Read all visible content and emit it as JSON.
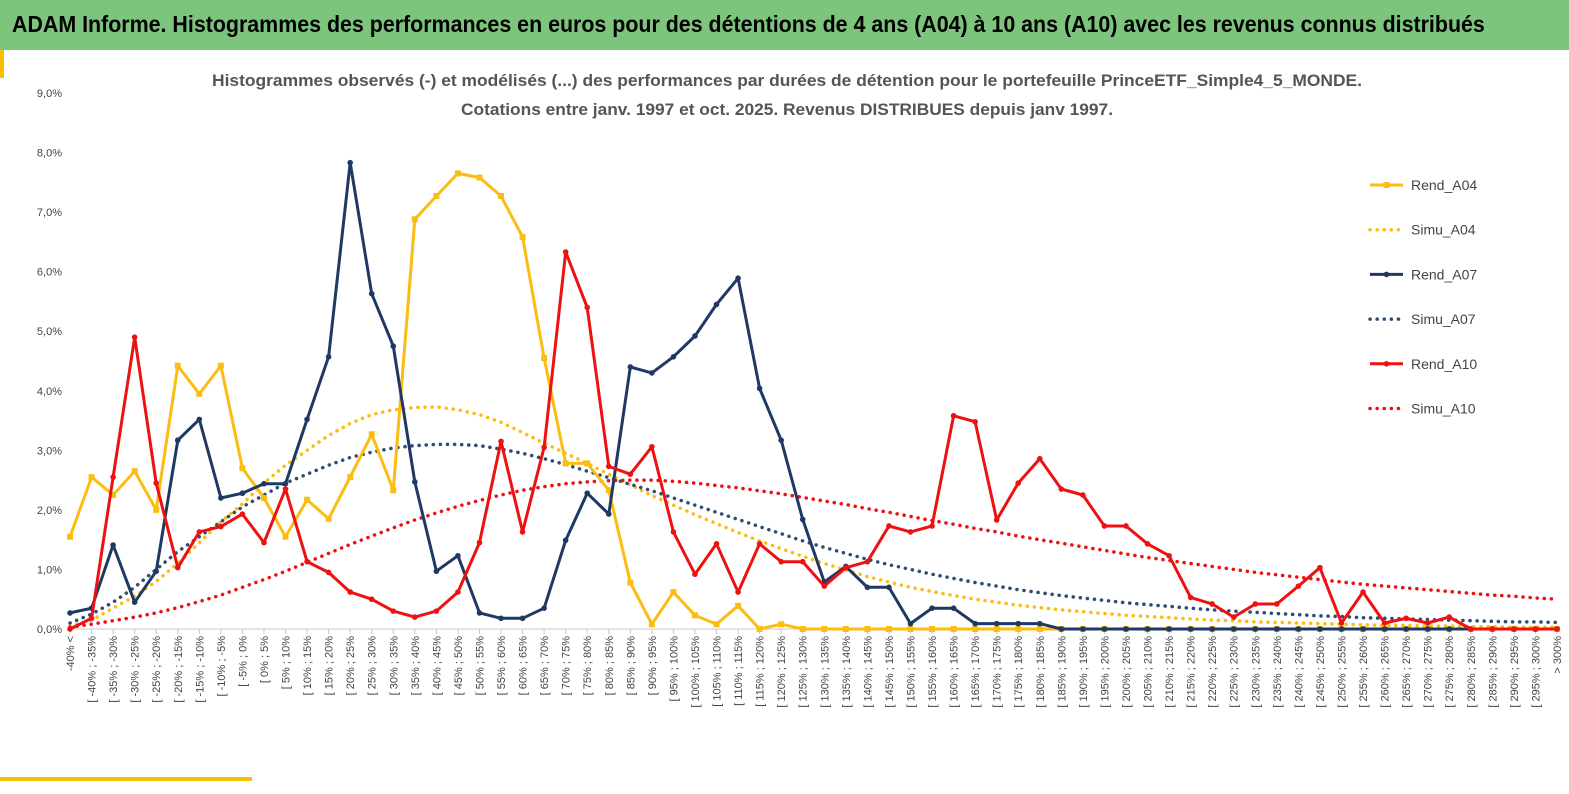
{
  "banner": {
    "title": "ADAM Informe. Histogrammes des performances en euros pour des détentions de 4 ans (A04) à 10 ans (A10) avec les revenus connus distribués"
  },
  "colors": {
    "banner": "#7dc57d",
    "accent": "#f5c100",
    "A04": "#fbbd12",
    "A07": "#1f3864",
    "A10": "#ee1111",
    "simA07": "#2f4d70"
  },
  "chart_data": {
    "type": "line",
    "title": "Histogrammes observés (-) et modélisés (...) des performances par durées de détention pour le portefeuille PrinceETF_Simple4_5_MONDE.",
    "subtitle": "Cotations entre janv. 1997 et oct. 2025. Revenus DISTRIBUES depuis janv 1997.",
    "ylim": [
      0,
      9
    ],
    "yticks": [
      "0,0%",
      "1,0%",
      "2,0%",
      "3,0%",
      "4,0%",
      "5,0%",
      "6,0%",
      "7,0%",
      "8,0%",
      "9,0%"
    ],
    "grid": false,
    "legend_position": "right",
    "categories": [
      "-40% <",
      "[ -40% ; -35%",
      "[ -35% ; -30%",
      "[ -30% ; -25%",
      "[ -25% ; -20%",
      "[ -20% ; -15%",
      "[ -15% ; -10%",
      "[ -10% ; -5%",
      "[ -5% ; 0%",
      "[ 0% ; 5%",
      "[ 5% ; 10%",
      "[ 10% ; 15%",
      "[ 15% ; 20%",
      "[ 20% ; 25%",
      "[ 25% ; 30%",
      "[ 30% ; 35%",
      "[ 35% ; 40%",
      "[ 40% ; 45%",
      "[ 45% ; 50%",
      "[ 50% ; 55%",
      "[ 55% ; 60%",
      "[ 60% ; 65%",
      "[ 65% ; 70%",
      "[ 70% ; 75%",
      "[ 75% ; 80%",
      "[ 80% ; 85%",
      "[ 85% ; 90%",
      "[ 90% ; 95%",
      "[ 95% ; 100%",
      "[ 100% ; 105%",
      "[ 105% ; 110%",
      "[ 110% ; 115%",
      "[ 115% ; 120%",
      "[ 120% ; 125%",
      "[ 125% ; 130%",
      "[ 130% ; 135%",
      "[ 135% ; 140%",
      "[ 140% ; 145%",
      "[ 145% ; 150%",
      "[ 150% ; 155%",
      "[ 155% ; 160%",
      "[ 160% ; 165%",
      "[ 165% ; 170%",
      "[ 170% ; 175%",
      "[ 175% ; 180%",
      "[ 180% ; 185%",
      "[ 185% ; 190%",
      "[ 190% ; 195%",
      "[ 195% ; 200%",
      "[ 200% ; 205%",
      "[ 205% ; 210%",
      "[ 210% ; 215%",
      "[ 215% ; 220%",
      "[ 220% ; 225%",
      "[ 225% ; 230%",
      "[ 230% ; 235%",
      "[ 235% ; 240%",
      "[ 240% ; 245%",
      "[ 245% ; 250%",
      "[ 250% ; 255%",
      "[ 255% ; 260%",
      "[ 260% ; 265%",
      "[ 265% ; 270%",
      "[ 270% ; 275%",
      "[ 275% ; 280%",
      "[ 280% ; 285%",
      "[ 285% ; 290%",
      "[ 290% ; 295%",
      "[ 295% ; 300%",
      "> 300%"
    ],
    "series": [
      {
        "name": "Rend_A04",
        "style": "solid",
        "marker": "square",
        "color": "#fbbd12",
        "values": [
          1.55,
          2.55,
          2.25,
          2.65,
          2.0,
          4.42,
          3.95,
          4.42,
          2.7,
          2.2,
          1.55,
          2.17,
          1.85,
          2.55,
          3.27,
          2.33,
          6.88,
          7.27,
          7.65,
          7.58,
          7.27,
          6.58,
          4.55,
          2.78,
          2.78,
          2.33,
          0.78,
          0.08,
          0.62,
          0.23,
          0.08,
          0.39,
          0.0,
          0.08,
          0.0,
          0.0,
          0.0,
          0.0,
          0.0,
          0.0,
          0.0,
          0.0,
          0.0,
          0.0,
          0.0,
          0.0,
          0.0,
          0.0,
          0.0,
          0.0,
          0.0,
          0.0,
          0.0,
          0.0,
          0.0,
          0.0,
          0.0,
          0.0,
          0.0,
          0.0,
          0.0,
          0.0,
          0.0,
          0.0,
          0.0,
          0.0,
          0.0,
          0.0,
          0.0,
          0.0
        ]
      },
      {
        "name": "Simu_A04",
        "style": "dotted",
        "color": "#fbbd12",
        "values": [
          0.05,
          0.15,
          0.35,
          0.55,
          0.8,
          1.1,
          1.45,
          1.8,
          2.1,
          2.45,
          2.75,
          3.0,
          3.25,
          3.45,
          3.6,
          3.68,
          3.72,
          3.73,
          3.68,
          3.6,
          3.47,
          3.3,
          3.12,
          2.95,
          2.78,
          2.6,
          2.42,
          2.24,
          2.08,
          1.92,
          1.77,
          1.62,
          1.48,
          1.35,
          1.22,
          1.1,
          0.99,
          0.88,
          0.79,
          0.7,
          0.63,
          0.56,
          0.5,
          0.45,
          0.4,
          0.36,
          0.32,
          0.29,
          0.26,
          0.23,
          0.21,
          0.19,
          0.17,
          0.15,
          0.14,
          0.12,
          0.11,
          0.1,
          0.09,
          0.08,
          0.07,
          0.06,
          0.06,
          0.05,
          0.05,
          0.04,
          0.04,
          0.03,
          0.03,
          0.03
        ]
      },
      {
        "name": "Rend_A07",
        "style": "solid",
        "marker": "circle",
        "color": "#1f3864",
        "values": [
          0.27,
          0.35,
          1.41,
          0.45,
          0.97,
          3.17,
          3.52,
          2.2,
          2.28,
          2.44,
          2.44,
          3.52,
          4.57,
          7.83,
          5.63,
          4.75,
          2.47,
          0.97,
          1.23,
          0.27,
          0.18,
          0.18,
          0.35,
          1.49,
          2.28,
          1.93,
          4.4,
          4.3,
          4.57,
          4.92,
          5.45,
          5.89,
          4.04,
          3.17,
          1.84,
          0.79,
          1.05,
          0.7,
          0.7,
          0.09,
          0.35,
          0.35,
          0.09,
          0.09,
          0.09,
          0.09,
          0.0,
          0.0,
          0.0,
          0.0,
          0.0,
          0.0,
          0.0,
          0.0,
          0.0,
          0.0,
          0.0,
          0.0,
          0.0,
          0.0,
          0.0,
          0.0,
          0.0,
          0.0,
          0.0,
          0.0,
          0.0,
          0.0,
          0.0,
          0.0
        ]
      },
      {
        "name": "Simu_A07",
        "style": "dotted",
        "color": "#2f4d70",
        "values": [
          0.1,
          0.25,
          0.45,
          0.7,
          1.0,
          1.3,
          1.55,
          1.8,
          2.05,
          2.25,
          2.45,
          2.6,
          2.75,
          2.88,
          2.97,
          3.04,
          3.08,
          3.1,
          3.1,
          3.08,
          3.02,
          2.95,
          2.86,
          2.76,
          2.65,
          2.54,
          2.43,
          2.32,
          2.2,
          2.08,
          1.96,
          1.84,
          1.72,
          1.6,
          1.48,
          1.37,
          1.27,
          1.17,
          1.08,
          1.0,
          0.92,
          0.85,
          0.78,
          0.72,
          0.66,
          0.61,
          0.56,
          0.52,
          0.48,
          0.44,
          0.41,
          0.38,
          0.35,
          0.32,
          0.3,
          0.28,
          0.26,
          0.24,
          0.22,
          0.21,
          0.19,
          0.18,
          0.17,
          0.16,
          0.15,
          0.14,
          0.13,
          0.12,
          0.12,
          0.11
        ]
      },
      {
        "name": "Rend_A10",
        "style": "solid",
        "marker": "circle",
        "color": "#ee1111",
        "values": [
          0.0,
          0.18,
          2.55,
          4.9,
          2.45,
          1.03,
          1.63,
          1.72,
          1.93,
          1.45,
          2.35,
          1.13,
          0.95,
          0.62,
          0.5,
          0.3,
          0.2,
          0.3,
          0.62,
          1.45,
          3.15,
          1.63,
          3.05,
          6.33,
          5.4,
          2.73,
          2.6,
          3.06,
          1.63,
          0.92,
          1.43,
          0.62,
          1.43,
          1.13,
          1.13,
          0.72,
          1.03,
          1.13,
          1.73,
          1.63,
          1.73,
          3.58,
          3.48,
          1.83,
          2.45,
          2.86,
          2.35,
          2.25,
          1.73,
          1.73,
          1.43,
          1.23,
          0.53,
          0.42,
          0.2,
          0.42,
          0.42,
          0.72,
          1.03,
          0.1,
          0.62,
          0.1,
          0.18,
          0.1,
          0.2,
          0.0,
          0.0,
          0.0,
          0.0,
          0.0
        ]
      },
      {
        "name": "Simu_A10",
        "style": "dotted",
        "color": "#ee1111",
        "values": [
          0.03,
          0.08,
          0.14,
          0.2,
          0.27,
          0.36,
          0.46,
          0.57,
          0.7,
          0.83,
          0.97,
          1.12,
          1.27,
          1.42,
          1.56,
          1.7,
          1.83,
          1.95,
          2.06,
          2.16,
          2.25,
          2.33,
          2.39,
          2.44,
          2.47,
          2.49,
          2.5,
          2.5,
          2.48,
          2.45,
          2.41,
          2.37,
          2.32,
          2.27,
          2.21,
          2.15,
          2.09,
          2.02,
          1.96,
          1.89,
          1.82,
          1.76,
          1.69,
          1.63,
          1.56,
          1.5,
          1.44,
          1.38,
          1.32,
          1.26,
          1.2,
          1.15,
          1.1,
          1.05,
          1.0,
          0.95,
          0.91,
          0.87,
          0.83,
          0.79,
          0.75,
          0.72,
          0.69,
          0.66,
          0.63,
          0.6,
          0.57,
          0.55,
          0.52,
          0.5
        ]
      }
    ]
  }
}
